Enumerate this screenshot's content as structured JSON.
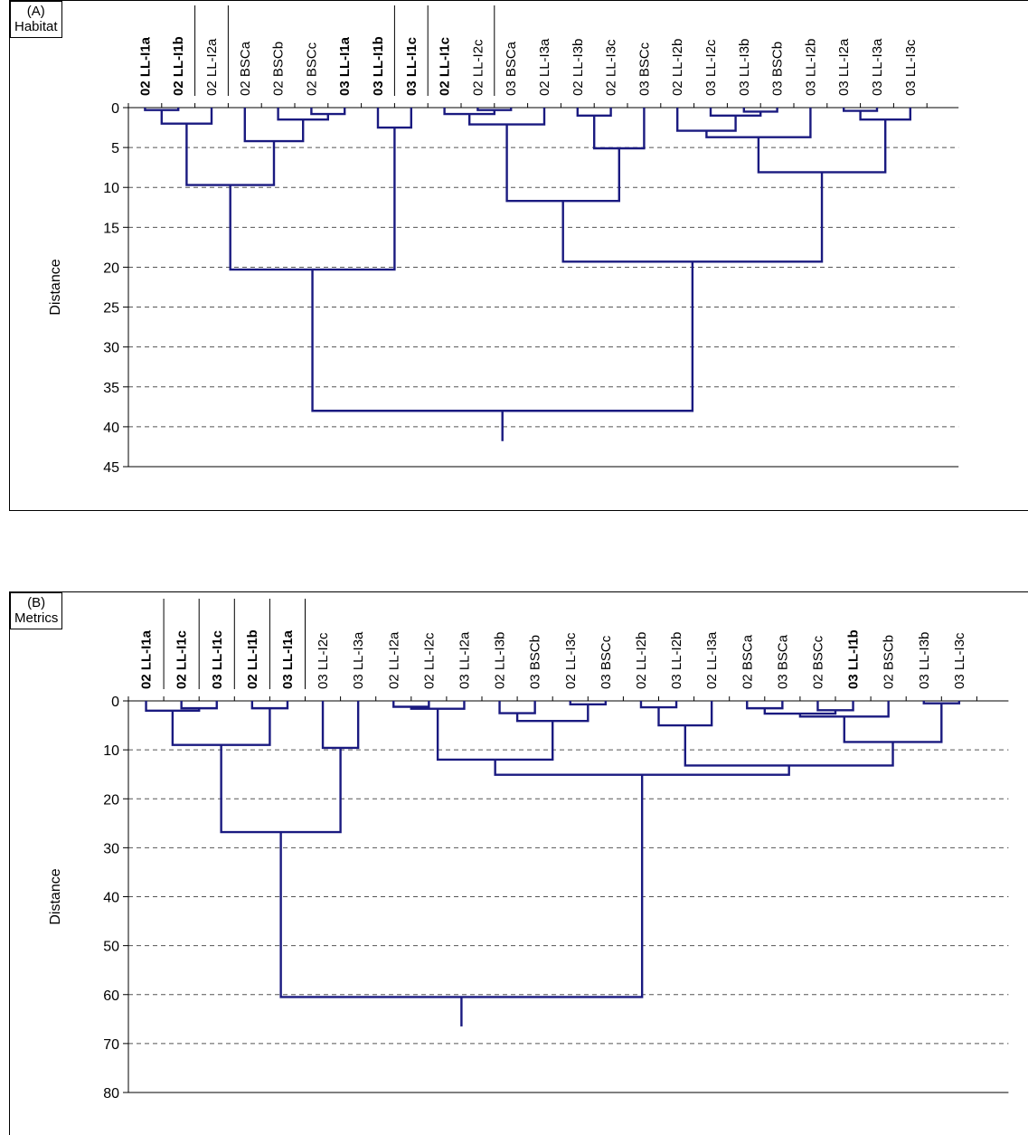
{
  "chart_data": [
    {
      "type": "dendrogram",
      "panel_label": "(A)",
      "panel_title": "Habitat",
      "ylabel": "Distance",
      "yticks": [
        0,
        5,
        10,
        15,
        20,
        25,
        30,
        35,
        40,
        45
      ],
      "ylim": [
        0,
        45
      ],
      "grid": "dashed horizontal",
      "line_color": "#1a1a80",
      "separators": [
        1,
        2,
        7,
        8,
        10
      ],
      "leaves": [
        {
          "label": "02 LL-I1a",
          "bold": true
        },
        {
          "label": "02 LL-I1b",
          "bold": true
        },
        {
          "label": "02 LL-I2a",
          "bold": false
        },
        {
          "label": "02 BSCa",
          "bold": false
        },
        {
          "label": "02 BSCb",
          "bold": false
        },
        {
          "label": "02 BSCc",
          "bold": false
        },
        {
          "label": "03 LL-I1a",
          "bold": true
        },
        {
          "label": "03 LL-I1b",
          "bold": true
        },
        {
          "label": "03 LL-I1c",
          "bold": true
        },
        {
          "label": "02 LL-I1c",
          "bold": true
        },
        {
          "label": "02 LL-I2c",
          "bold": false
        },
        {
          "label": "03 BSCa",
          "bold": false
        },
        {
          "label": "02 LL-I3a",
          "bold": false
        },
        {
          "label": "02 LL-I3b",
          "bold": false
        },
        {
          "label": "02 LL-I3c",
          "bold": false
        },
        {
          "label": "03 BSCc",
          "bold": false
        },
        {
          "label": "02 LL-I2b",
          "bold": false
        },
        {
          "label": "03 LL-I2c",
          "bold": false
        },
        {
          "label": "03 LL-I3b",
          "bold": false
        },
        {
          "label": "03 BSCb",
          "bold": false
        },
        {
          "label": "03 LL-I2b",
          "bold": false
        },
        {
          "label": "03 LL-I2a",
          "bold": false
        },
        {
          "label": "03 LL-I3a",
          "bold": false
        },
        {
          "label": "03 LL-I3c",
          "bold": false
        }
      ],
      "merges": [
        {
          "a": "L0",
          "b": "L1",
          "d": 0.3
        },
        {
          "a": "M0",
          "b": "L2",
          "d": 2.0
        },
        {
          "a": "L5",
          "b": "L6",
          "d": 0.8
        },
        {
          "a": "L4",
          "b": "M2",
          "d": 1.5
        },
        {
          "a": "L3",
          "b": "M3",
          "d": 4.2
        },
        {
          "a": "M1",
          "b": "M4",
          "d": 9.7
        },
        {
          "a": "L7",
          "b": "L8",
          "d": 2.5
        },
        {
          "a": "M5",
          "b": "M6",
          "d": 20.3
        },
        {
          "a": "L10",
          "b": "L11",
          "d": 0.3
        },
        {
          "a": "L9",
          "b": "M8",
          "d": 0.8
        },
        {
          "a": "M9",
          "b": "L12",
          "d": 2.1
        },
        {
          "a": "L13",
          "b": "L14",
          "d": 1.0
        },
        {
          "a": "M11",
          "b": "L15",
          "d": 5.1
        },
        {
          "a": "M10",
          "b": "M12",
          "d": 11.7
        },
        {
          "a": "L18",
          "b": "L19",
          "d": 0.5
        },
        {
          "a": "L17",
          "b": "M14",
          "d": 1.0
        },
        {
          "a": "L16",
          "b": "M15",
          "d": 2.9
        },
        {
          "a": "M16",
          "b": "L20",
          "d": 3.7
        },
        {
          "a": "L21",
          "b": "L22",
          "d": 0.4
        },
        {
          "a": "M18",
          "b": "L23",
          "d": 1.5
        },
        {
          "a": "M17",
          "b": "M19",
          "d": 8.1
        },
        {
          "a": "M13",
          "b": "M20",
          "d": 19.3
        },
        {
          "a": "M7",
          "b": "M21",
          "d": 38.0
        }
      ],
      "root_stem_to": 41.8
    },
    {
      "type": "dendrogram",
      "panel_label": "(B)",
      "panel_title": "Metrics",
      "ylabel": "Distance",
      "yticks": [
        0,
        10,
        20,
        30,
        40,
        50,
        60,
        70,
        80
      ],
      "ylim": [
        0,
        80
      ],
      "grid": "dashed horizontal",
      "line_color": "#1a1a80",
      "separators": [
        0,
        1,
        2,
        3,
        4
      ],
      "leaves": [
        {
          "label": "02 LL-I1a",
          "bold": true
        },
        {
          "label": "02 LL-I1c",
          "bold": true
        },
        {
          "label": "03 LL-I1c",
          "bold": true
        },
        {
          "label": "02 LL-I1b",
          "bold": true
        },
        {
          "label": "03 LL-I1a",
          "bold": true
        },
        {
          "label": "03 LL-I2c",
          "bold": false
        },
        {
          "label": "03 LL-I3a",
          "bold": false
        },
        {
          "label": "02 LL-I2a",
          "bold": false
        },
        {
          "label": "02 LL-I2c",
          "bold": false
        },
        {
          "label": "03 LL-I2a",
          "bold": false
        },
        {
          "label": "02 LL-I3b",
          "bold": false
        },
        {
          "label": "03 BSCb",
          "bold": false
        },
        {
          "label": "02 LL-I3c",
          "bold": false
        },
        {
          "label": "03 BSCc",
          "bold": false
        },
        {
          "label": "02 LL-I2b",
          "bold": false
        },
        {
          "label": "03 LL-I2b",
          "bold": false
        },
        {
          "label": "02 LL-I3a",
          "bold": false
        },
        {
          "label": "02 BSCa",
          "bold": false
        },
        {
          "label": "03 BSCa",
          "bold": false
        },
        {
          "label": "02 BSCc",
          "bold": false
        },
        {
          "label": "03 LL-I1b",
          "bold": true
        },
        {
          "label": "02 BSCb",
          "bold": false
        },
        {
          "label": "03 LL-I3b",
          "bold": false
        },
        {
          "label": "03 LL-I3c",
          "bold": false
        }
      ],
      "merges": [
        {
          "a": "L1",
          "b": "L2",
          "d": 1.5
        },
        {
          "a": "L0",
          "b": "M0",
          "d": 2.0
        },
        {
          "a": "L3",
          "b": "L4",
          "d": 1.5
        },
        {
          "a": "M1",
          "b": "M2",
          "d": 9.0
        },
        {
          "a": "L5",
          "b": "L6",
          "d": 9.6
        },
        {
          "a": "M3",
          "b": "M4",
          "d": 26.8
        },
        {
          "a": "L7",
          "b": "L8",
          "d": 1.2
        },
        {
          "a": "M6",
          "b": "L9",
          "d": 1.6
        },
        {
          "a": "L10",
          "b": "L11",
          "d": 2.5
        },
        {
          "a": "L12",
          "b": "L13",
          "d": 0.7
        },
        {
          "a": "M8",
          "b": "M9",
          "d": 4.1
        },
        {
          "a": "M7",
          "b": "M10",
          "d": 12.0
        },
        {
          "a": "L14",
          "b": "L15",
          "d": 1.3
        },
        {
          "a": "M12",
          "b": "L16",
          "d": 5.0
        },
        {
          "a": "L17",
          "b": "L18",
          "d": 1.5
        },
        {
          "a": "L19",
          "b": "L20",
          "d": 1.9
        },
        {
          "a": "M14",
          "b": "M15",
          "d": 2.6
        },
        {
          "a": "M16",
          "b": "L21",
          "d": 3.2
        },
        {
          "a": "L22",
          "b": "L23",
          "d": 0.5
        },
        {
          "a": "M17",
          "b": "M18",
          "d": 8.4
        },
        {
          "a": "M13",
          "b": "M19",
          "d": 13.2
        },
        {
          "a": "M11",
          "b": "M20",
          "d": 15.1
        },
        {
          "a": "M5",
          "b": "M21",
          "d": 60.5
        }
      ],
      "root_stem_to": 66.5
    }
  ]
}
